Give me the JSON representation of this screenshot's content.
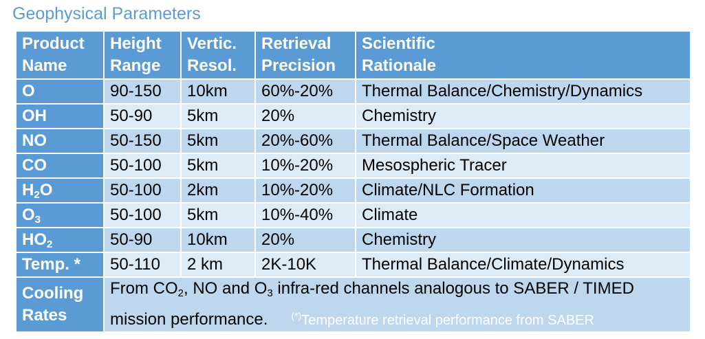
{
  "title": "Geophysical Parameters",
  "header": {
    "product_line1": "Product",
    "product_line2": "Name",
    "height_line1": "Height",
    "height_line2": "Range",
    "vertic_line1": "Vertic.",
    "vertic_line2": "Resol.",
    "retrieval_line1": "Retrieval",
    "retrieval_line2": "Precision",
    "rationale_line1": "Scientific",
    "rationale_line2": "Rationale"
  },
  "rows": [
    {
      "name": "O",
      "name_sub": "",
      "name_rest": "",
      "height": "90-150",
      "resol": "10km",
      "precision": "60%-20%",
      "rationale": "Thermal Balance/Chemistry/Dynamics"
    },
    {
      "name": "OH",
      "name_sub": "",
      "name_rest": "",
      "height": "50-90",
      "resol": "5km",
      "precision": "20%",
      "rationale": "Chemistry"
    },
    {
      "name": "NO",
      "name_sub": "",
      "name_rest": "",
      "height": "50-150",
      "resol": "5km",
      "precision": "20%-60%",
      "rationale": "Thermal Balance/Space Weather"
    },
    {
      "name": "CO",
      "name_sub": "",
      "name_rest": "",
      "height": "50-100",
      "resol": "5km",
      "precision": "10%-20%",
      "rationale": "Mesospheric Tracer"
    },
    {
      "name": "H",
      "name_sub": "2",
      "name_rest": "O",
      "height": "50-100",
      "resol": "2km",
      "precision": "10%-20%",
      "rationale": "Climate/NLC Formation"
    },
    {
      "name": "O",
      "name_sub": "3",
      "name_rest": "",
      "height": "50-100",
      "resol": "5km",
      "precision": "10%-40%",
      "rationale": "Climate"
    },
    {
      "name": "HO",
      "name_sub": "2",
      "name_rest": "",
      "height": "50-90",
      "resol": "10km",
      "precision": "20%",
      "rationale": "Chemistry"
    },
    {
      "name": "Temp. *",
      "name_sub": "",
      "name_rest": "",
      "height": "50-110",
      "resol": "2 km",
      "precision": "2K-10K",
      "rationale": "Thermal Balance/Climate/Dynamics"
    }
  ],
  "cooling": {
    "name_line1": "Cooling",
    "name_line2": "Rates",
    "text_a": "From CO",
    "sub_a": "2",
    "text_b": ", NO and O",
    "sub_b": "3",
    "text_c": " infra-red channels analogous to SABER / TIMED",
    "text_d": "mission performance.",
    "footnote_mark": "(*)",
    "footnote": "Temperature retrieval performance from SABER"
  }
}
